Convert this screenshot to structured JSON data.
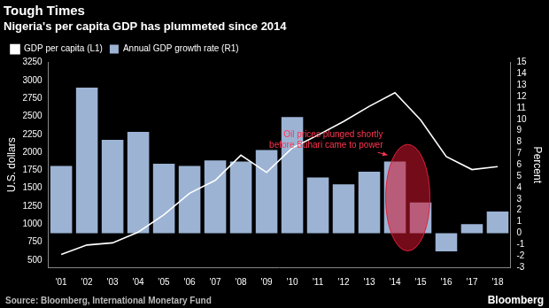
{
  "chart_data": {
    "type": "bar",
    "title": "Tough Times",
    "subtitle": "Nigeria's per capita GDP has plummeted since 2014",
    "y_label": "U.S. dollars",
    "y2_label": "Percent",
    "categories": [
      "'01",
      "'02",
      "'03",
      "'04",
      "'05",
      "'06",
      "'07",
      "'08",
      "'09",
      "'10",
      "'11",
      "'12",
      "'13",
      "'14",
      "'15",
      "'16",
      "'17",
      "'18"
    ],
    "series": [
      {
        "name": "GDP per capita (L1)",
        "type": "line",
        "color": "#ffffff",
        "values": [
          580,
          710,
          740,
          890,
          1130,
          1430,
          1610,
          1960,
          1720,
          2060,
          2240,
          2430,
          2640,
          2830,
          2450,
          1940,
          1760,
          1800
        ]
      },
      {
        "name": "Annual GDP growth rate (R1)",
        "type": "bar",
        "color": "#9cb3d4",
        "axis": "y2",
        "values": [
          5.9,
          12.8,
          8.2,
          8.9,
          6.1,
          5.9,
          6.4,
          6.3,
          7.3,
          10.2,
          4.9,
          4.3,
          5.4,
          6.3,
          2.7,
          -1.6,
          0.8,
          1.9
        ]
      }
    ],
    "ylim": [
      400,
      3250
    ],
    "yticks": [
      500,
      750,
      1000,
      1250,
      1500,
      1750,
      2000,
      2250,
      2500,
      2750,
      3000,
      3250
    ],
    "y2lim": [
      -3,
      15
    ],
    "y2ticks": [
      -3,
      -2,
      -1,
      0,
      1,
      2,
      3,
      4,
      5,
      6,
      7,
      8,
      9,
      10,
      11,
      12,
      13,
      14,
      15
    ],
    "grid": false,
    "legend": "top left",
    "annotation": [
      "Oil prices plunged shortly",
      "before Buhari came to power"
    ],
    "source": "Source: Bloomberg, International Monetary Fund",
    "credit": "Bloomberg"
  }
}
